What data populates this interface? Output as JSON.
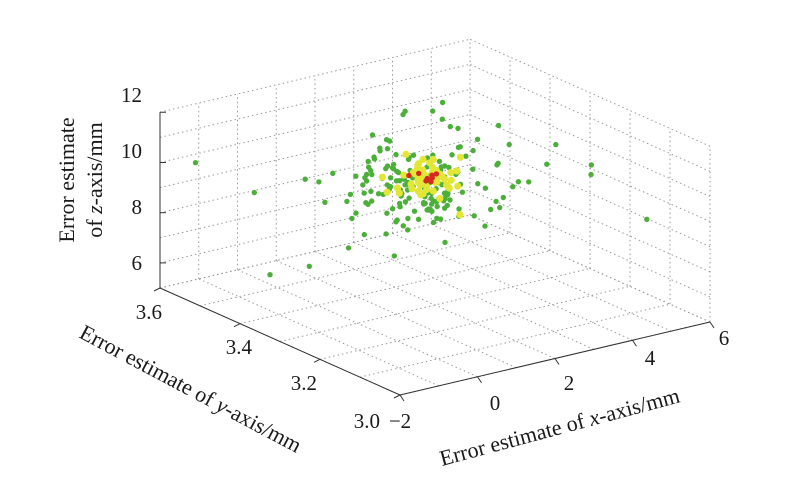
{
  "chart_data": {
    "type": "scatter3d",
    "xlabel_prefix": "Error estimate of ",
    "xlabel_var": "x",
    "xlabel_suffix": "-axis/mm",
    "ylabel_prefix": "Error estimate of ",
    "ylabel_var": "y",
    "ylabel_suffix": "-axis/mm",
    "zlabel_line1": "Error estimate",
    "zlabel_line2_prefix": "of ",
    "zlabel_line2_var": "z",
    "zlabel_line2_suffix": "-axis/mm",
    "xlim": [
      -2,
      6
    ],
    "ylim": [
      3.0,
      3.6
    ],
    "zlim": [
      5,
      12
    ],
    "x_ticks": [
      "−2",
      "0",
      "2",
      "4",
      "6"
    ],
    "y_ticks": [
      "3.0",
      "3.2",
      "3.4",
      "3.6"
    ],
    "z_ticks": [
      "6",
      "8",
      "10",
      "12"
    ],
    "grid": true,
    "colors": {
      "green": "#4caf3a",
      "yellow": "#e4e635",
      "red": "#d42a1e"
    }
  }
}
